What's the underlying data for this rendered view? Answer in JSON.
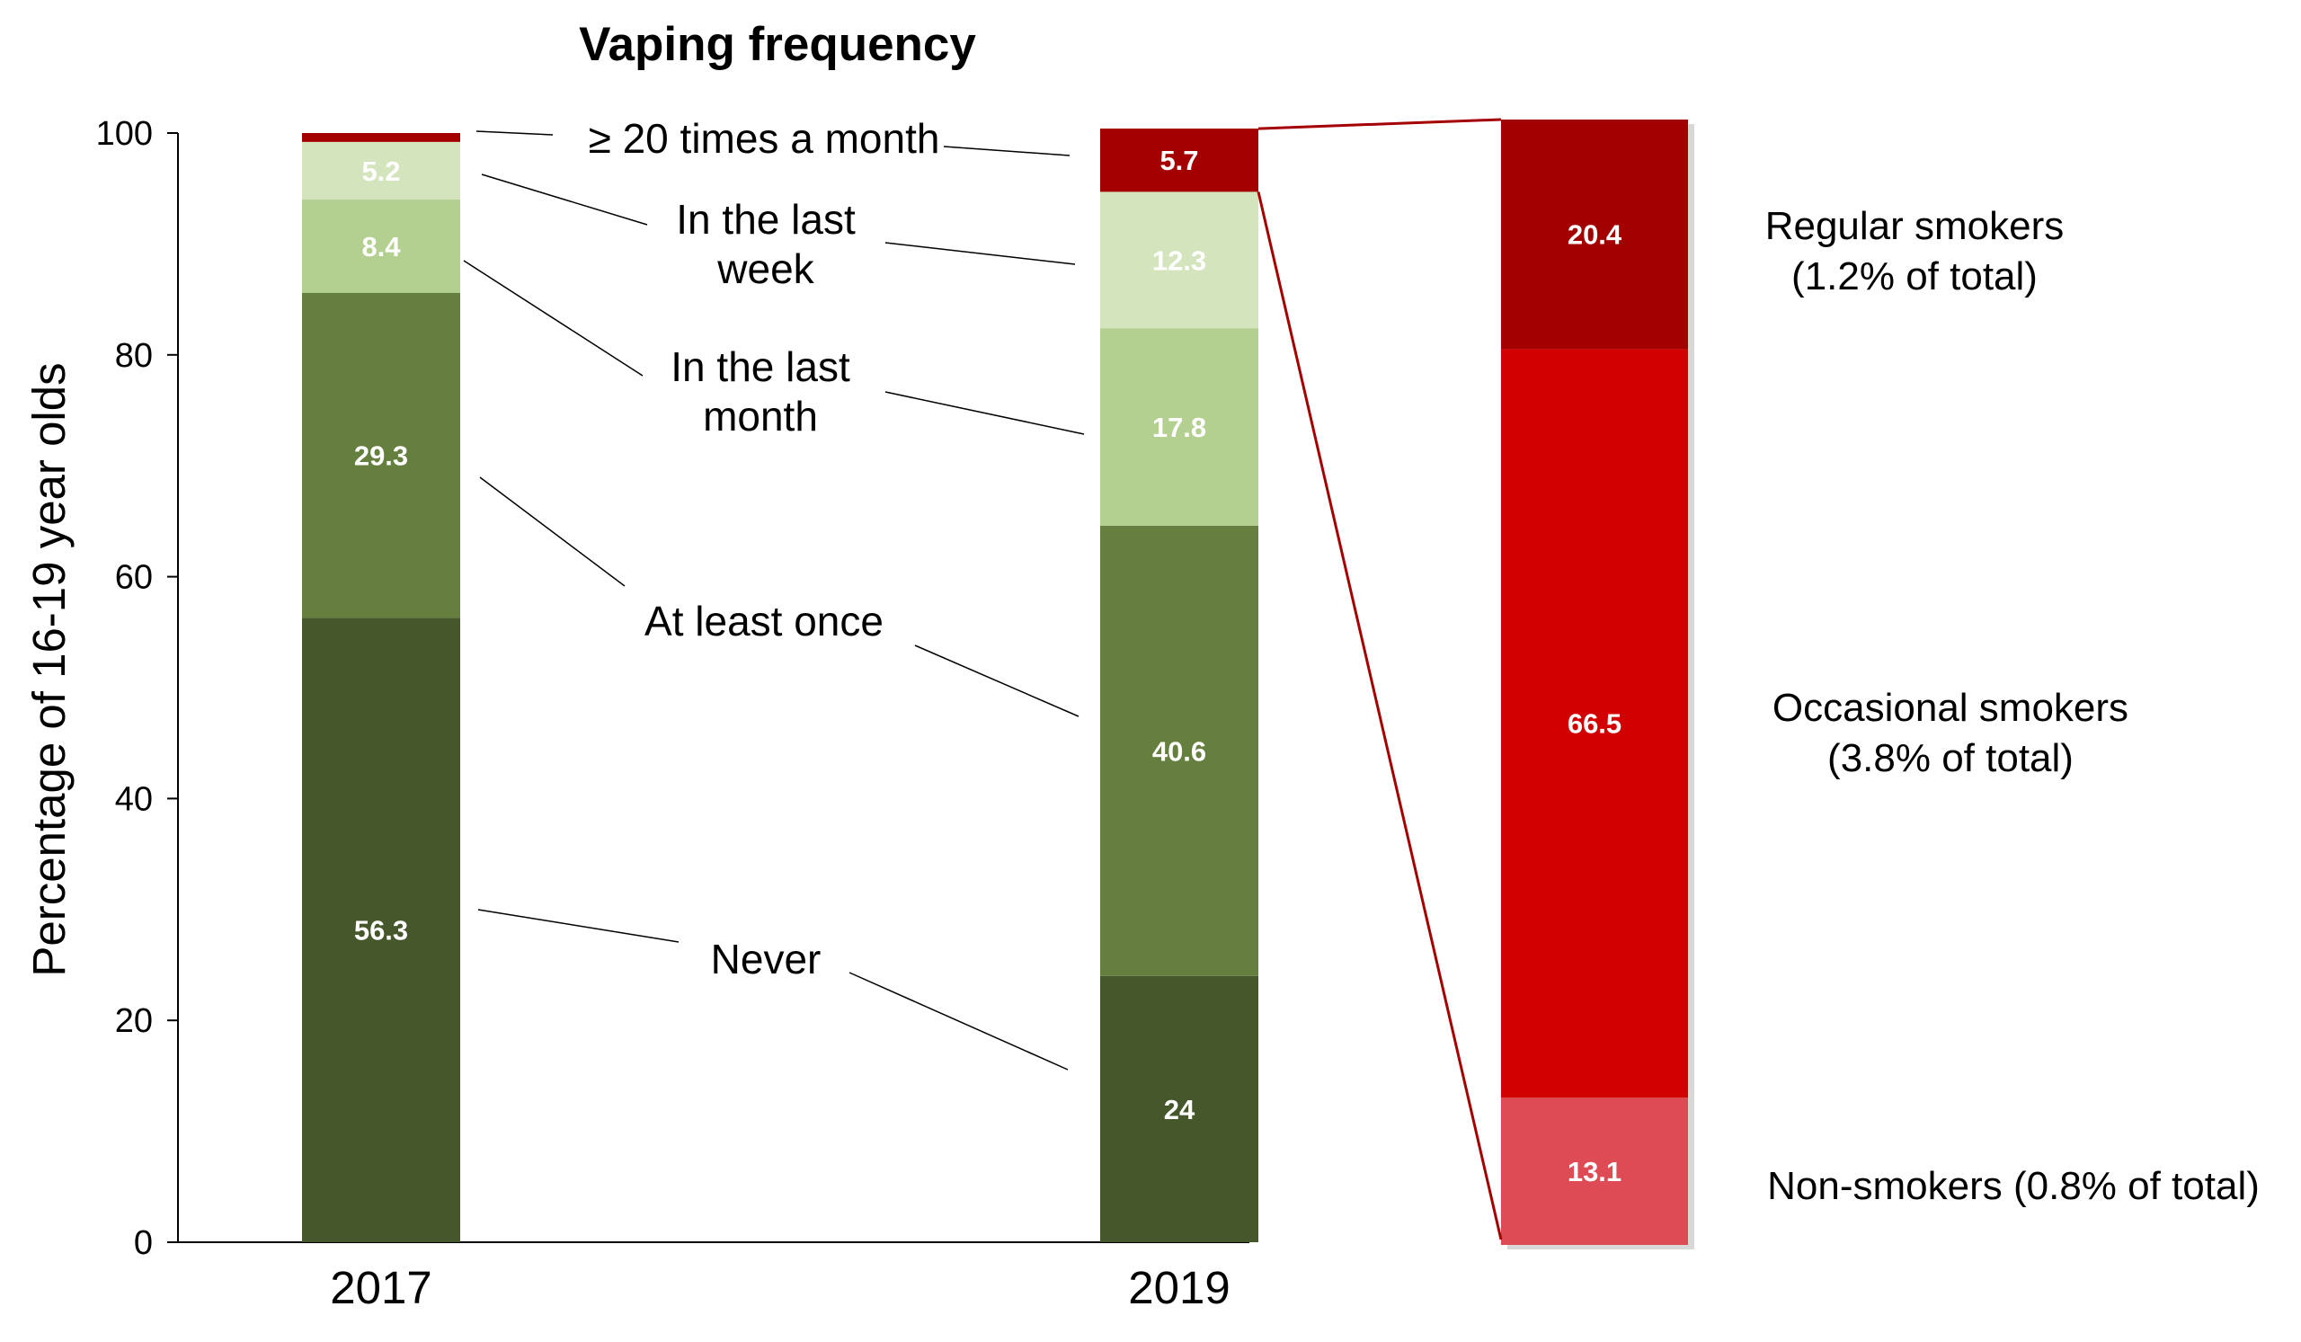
{
  "chart_data": {
    "type": "bar",
    "title": "Vaping frequency",
    "ylabel": "Percentage of 16-19 year olds",
    "ylim": [
      0,
      100
    ],
    "yticks": [
      "0",
      "20",
      "40",
      "60",
      "80",
      "100"
    ],
    "categories": [
      "2017",
      "2019"
    ],
    "stacked": true,
    "series": [
      {
        "name": "Never",
        "values": [
          56.3,
          24
        ],
        "labels": [
          "56.3",
          "24"
        ],
        "color": "#45572b"
      },
      {
        "name": "At least once",
        "values": [
          29.3,
          40.6
        ],
        "labels": [
          "29.3",
          "40.6"
        ],
        "color": "#647f3e"
      },
      {
        "name": "In the last month",
        "values": [
          8.4,
          17.8
        ],
        "labels": [
          "8.4",
          "17.8"
        ],
        "color": "#b3d090"
      },
      {
        "name": "In the last week",
        "values": [
          5.2,
          12.3
        ],
        "labels": [
          "5.2",
          "12.3"
        ],
        "color": "#d4e5bd"
      },
      {
        "name": "≥ 20 times a month",
        "values": [
          0.8,
          5.7
        ],
        "labels": [
          "",
          "5.7"
        ],
        "color": "#a50000"
      }
    ],
    "annotations": [
      {
        "series": "≥ 20 times a month",
        "lines": [
          "≥ 20 times a month"
        ]
      },
      {
        "series": "In the last week",
        "lines": [
          "In the last",
          "week"
        ]
      },
      {
        "series": "In the last month",
        "lines": [
          "In the last",
          "month"
        ]
      },
      {
        "series": "At least once",
        "lines": [
          "At least once"
        ]
      },
      {
        "series": "Never",
        "lines": [
          "Never"
        ]
      }
    ],
    "breakdown": {
      "of_series": "≥ 20 times a month",
      "of_category": "2019",
      "segments": [
        {
          "value": 13.1,
          "label": "13.1",
          "color": "#de4b55",
          "lines": [
            "Non-smokers (0.8% of total)"
          ]
        },
        {
          "value": 66.5,
          "label": "66.5",
          "color": "#d20000",
          "lines": [
            "Occasional smokers",
            "(3.8% of total)"
          ]
        },
        {
          "value": 20.4,
          "label": "20.4",
          "color": "#a30000",
          "lines": [
            "Regular smokers",
            "(1.2% of total)"
          ]
        }
      ],
      "connector_color": "#a50000"
    },
    "grid": false,
    "legend": "none"
  }
}
